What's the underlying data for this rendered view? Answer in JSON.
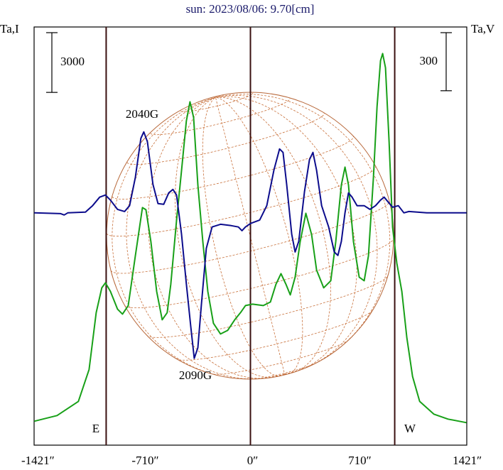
{
  "chart_data": {
    "type": "line",
    "title": "sun: 2023/08/06: 9.70[cm]",
    "ylabel": "Ta,I",
    "y2label": "Ta,V",
    "xlim": [
      -1432,
      1432
    ],
    "xticks": [
      {
        "value": -1421,
        "label": "-1421″"
      },
      {
        "value": -710,
        "label": "-710″"
      },
      {
        "value": 0,
        "label": "0″"
      },
      {
        "value": 710,
        "label": "710″"
      },
      {
        "value": 1421,
        "label": "1421″"
      }
    ],
    "ylim": [
      -1200,
      19800
    ],
    "y2lim": [
      -1200,
      960
    ],
    "scale_bars": [
      {
        "label": "3000",
        "value": 3000,
        "axis": "y"
      },
      {
        "label": "300",
        "value": 300,
        "axis": "y2"
      }
    ],
    "limb_lines": [
      -955,
      0,
      955
    ],
    "annotations": [
      {
        "text": "2040G"
      },
      {
        "text": "2090G"
      },
      {
        "text": "E"
      },
      {
        "text": "W"
      }
    ],
    "series": [
      {
        "color": "#18a018",
        "axis": "y",
        "x": [
          -1431,
          -1280,
          -1139,
          -1068,
          -1021,
          -984,
          -960,
          -927,
          -880,
          -847,
          -809,
          -762,
          -715,
          -692,
          -659,
          -621,
          -584,
          -551,
          -527,
          -489,
          -456,
          -424,
          -400,
          -376,
          -348,
          -315,
          -282,
          -245,
          -198,
          -151,
          -104,
          -66,
          -33,
          14,
          85,
          132,
          169,
          202,
          235,
          264,
          296,
          329,
          367,
          405,
          438,
          485,
          532,
          565,
          602,
          626,
          649,
          682,
          720,
          753,
          781,
          814,
          838,
          861,
          875,
          894,
          918,
          941,
          969,
          1002,
          1035,
          1073,
          1120,
          1214,
          1308,
          1430
        ],
        "values": [
          0,
          285,
          998,
          2602,
          5454,
          6702,
          6952,
          6524,
          5633,
          5383,
          5811,
          8306,
          10731,
          10624,
          9019,
          6524,
          5098,
          5454,
          6880,
          10089,
          12584,
          15080,
          16043,
          15258,
          11871,
          9019,
          6524,
          4920,
          4385,
          4563,
          5098,
          5454,
          5811,
          5882,
          5811,
          5989,
          6880,
          7415,
          6880,
          6346,
          7237,
          9019,
          10445,
          9376,
          7593,
          6702,
          7059,
          9019,
          11871,
          12763,
          11871,
          9019,
          7237,
          7059,
          8306,
          12228,
          15793,
          18110,
          18467,
          17754,
          14010,
          9732,
          7950,
          6524,
          4207,
          2246,
          998,
          357,
          107,
          -71
        ]
      },
      {
        "color": "#0c0c8c",
        "axis": "y2",
        "x": [
          -1431,
          -1256,
          -1233,
          -1209,
          -1092,
          -1045,
          -998,
          -960,
          -927,
          -880,
          -833,
          -800,
          -762,
          -725,
          -706,
          -682,
          -645,
          -612,
          -574,
          -541,
          -513,
          -489,
          -456,
          -424,
          -395,
          -372,
          -348,
          -325,
          -292,
          -254,
          -198,
          -127,
          -80,
          -56,
          -33,
          0,
          61,
          108,
          155,
          193,
          216,
          240,
          273,
          296,
          320,
          358,
          391,
          414,
          438,
          471,
          518,
          555,
          579,
          602,
          626,
          649,
          673,
          706,
          753,
          791,
          828,
          861,
          885,
          913,
          941,
          979,
          1016,
          1049,
          1167,
          1430
        ],
        "values": [
          0,
          -4,
          -11,
          0,
          4,
          37,
          81,
          92,
          66,
          18,
          7,
          37,
          183,
          385,
          418,
          367,
          147,
          48,
          44,
          103,
          121,
          92,
          -110,
          -367,
          -587,
          -752,
          -697,
          -477,
          -183,
          -73,
          -59,
          -66,
          -73,
          -92,
          -73,
          -55,
          -37,
          37,
          220,
          330,
          312,
          147,
          -110,
          -202,
          -147,
          110,
          275,
          312,
          220,
          37,
          -73,
          -202,
          -220,
          -147,
          0,
          103,
          81,
          37,
          37,
          18,
          37,
          66,
          81,
          55,
          29,
          37,
          0,
          7,
          0,
          0
        ]
      }
    ]
  }
}
